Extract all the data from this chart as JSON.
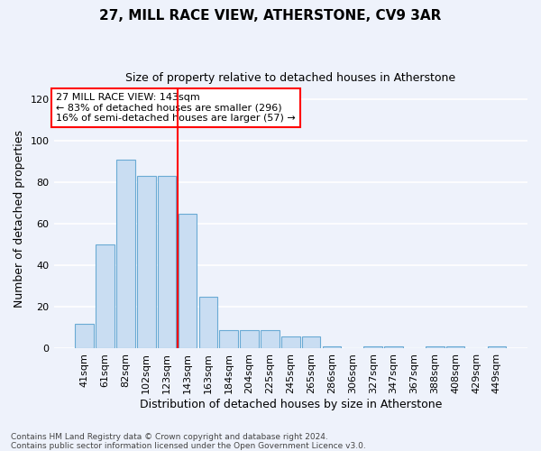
{
  "title": "27, MILL RACE VIEW, ATHERSTONE, CV9 3AR",
  "subtitle": "Size of property relative to detached houses in Atherstone",
  "xlabel": "Distribution of detached houses by size in Atherstone",
  "ylabel": "Number of detached properties",
  "bar_labels": [
    "41sqm",
    "61sqm",
    "82sqm",
    "102sqm",
    "123sqm",
    "143sqm",
    "163sqm",
    "184sqm",
    "204sqm",
    "225sqm",
    "245sqm",
    "265sqm",
    "286sqm",
    "306sqm",
    "327sqm",
    "347sqm",
    "367sqm",
    "388sqm",
    "408sqm",
    "429sqm",
    "449sqm"
  ],
  "bar_values": [
    12,
    50,
    91,
    83,
    83,
    65,
    25,
    9,
    9,
    9,
    6,
    6,
    1,
    0,
    1,
    1,
    0,
    1,
    1,
    0,
    1
  ],
  "bar_color": "#c9ddf2",
  "bar_edge_color": "#6aaad4",
  "vline_color": "red",
  "vline_x_index": 5,
  "annotation_text": "27 MILL RACE VIEW: 143sqm\n← 83% of detached houses are smaller (296)\n16% of semi-detached houses are larger (57) →",
  "annotation_box_color": "white",
  "annotation_box_edge": "red",
  "ylim": [
    0,
    125
  ],
  "yticks": [
    0,
    20,
    40,
    60,
    80,
    100,
    120
  ],
  "footnote": "Contains HM Land Registry data © Crown copyright and database right 2024.\nContains public sector information licensed under the Open Government Licence v3.0.",
  "bg_color": "#eef2fb",
  "grid_color": "white",
  "title_fontsize": 11,
  "subtitle_fontsize": 9,
  "ylabel_fontsize": 9,
  "xlabel_fontsize": 9,
  "tick_fontsize": 8,
  "footnote_fontsize": 6.5
}
